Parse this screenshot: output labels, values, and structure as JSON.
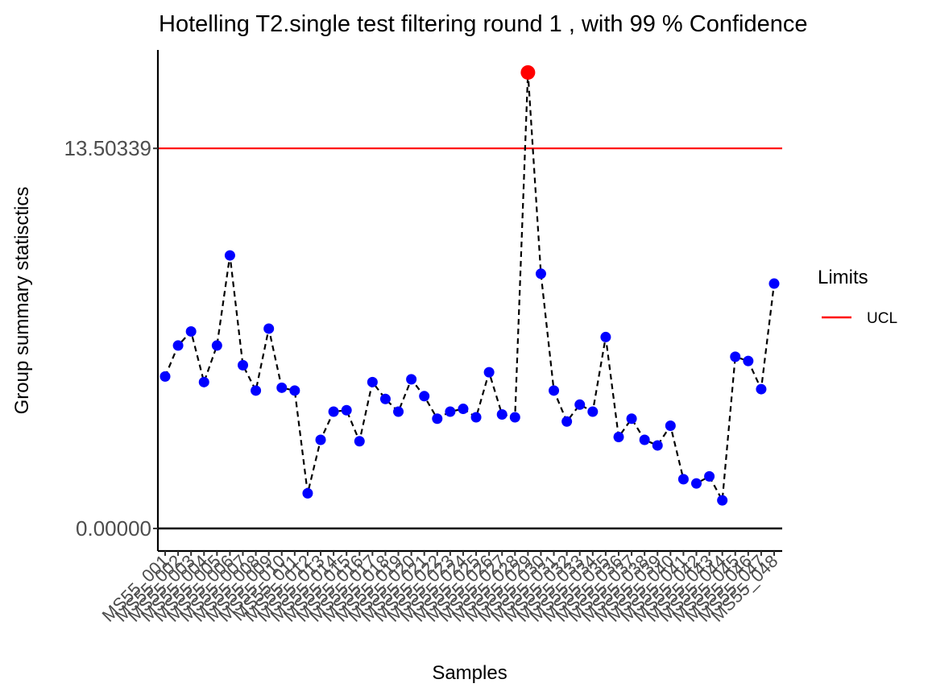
{
  "chart_data": {
    "type": "line",
    "title": "Hotelling  T2.single  test filtering round  1 , with  99 % Confidence",
    "xlabel": "Samples",
    "ylabel": "Group summary statisctics",
    "y_ticks": [
      "0.00000",
      "13.50339"
    ],
    "ylim": [
      -0.8,
      17.0
    ],
    "ucl": 13.50339,
    "lower_reference": 0,
    "legend": {
      "title": "Limits",
      "position": "right",
      "entries": [
        {
          "label": "UCL",
          "color": "#ff0000"
        }
      ]
    },
    "grid": false,
    "colors": {
      "normal_point": "#0000ff",
      "outlier_point": "#ff0000",
      "line": "#000000",
      "ucl": "#ff0000"
    },
    "categories": [
      "MS55_001",
      "MS55_002",
      "MS55_003",
      "MS55_004",
      "MS55_005",
      "MS55_006",
      "MS55_007",
      "MS55_008",
      "MS55_009",
      "MS55_010",
      "MS55_011",
      "MS55_012",
      "MS55_013",
      "MS55_014",
      "MS55_015",
      "MS55_016",
      "MS55_017",
      "MS55_018",
      "MS55_019",
      "MS55_020",
      "MS55_021",
      "MS55_022",
      "MS55_023",
      "MS55_024",
      "MS55_025",
      "MS55_026",
      "MS55_027",
      "MS55_028",
      "MS55_029",
      "MS55_030",
      "MS55_031",
      "MS55_032",
      "MS55_033",
      "MS55_034",
      "MS55_035",
      "MS55_036",
      "MS55_037",
      "MS55_038",
      "MS55_039",
      "MS55_040",
      "MS55_041",
      "MS55_042",
      "MS55_043",
      "MS55_044",
      "MS55_045",
      "MS55_046",
      "MS55_047",
      "MS55_048"
    ],
    "series": [
      {
        "values": [
          5.4,
          6.5,
          7.0,
          5.2,
          6.5,
          9.7,
          5.8,
          4.9,
          7.1,
          5.0,
          4.9,
          1.25,
          3.15,
          4.15,
          4.2,
          3.1,
          5.2,
          4.6,
          4.15,
          5.3,
          4.7,
          3.9,
          4.15,
          4.25,
          3.95,
          5.55,
          4.05,
          3.95,
          16.2,
          9.05,
          4.9,
          3.8,
          4.4,
          4.15,
          6.8,
          3.25,
          3.9,
          3.15,
          2.95,
          3.65,
          1.75,
          1.6,
          1.85,
          1.0,
          6.1,
          5.95,
          4.95,
          8.7
        ],
        "outliers": [
          28
        ]
      }
    ]
  }
}
